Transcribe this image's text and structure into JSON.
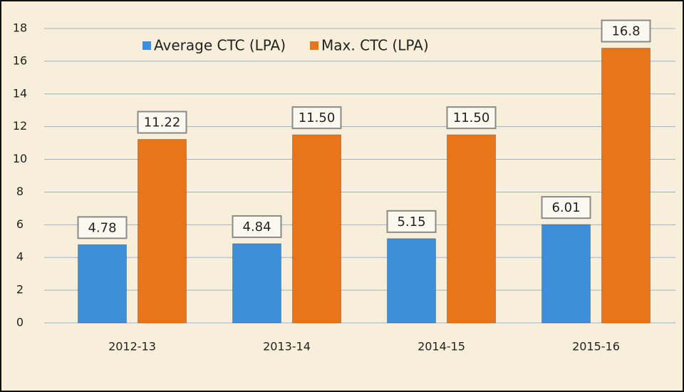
{
  "chart_data": {
    "type": "bar",
    "categories": [
      "2012-13",
      "2013-14",
      "2014-15",
      "2015-16"
    ],
    "series": [
      {
        "name": "Average CTC (LPA)",
        "color": "#3d8fd9",
        "values": [
          4.78,
          4.84,
          5.15,
          6.01
        ]
      },
      {
        "name": "Max. CTC (LPA)",
        "color": "#e8751a",
        "values": [
          11.22,
          11.5,
          11.5,
          16.8
        ],
        "value_labels": [
          "11.22",
          "11.50",
          "11.50",
          "16.8"
        ]
      }
    ],
    "ylim": [
      0,
      18
    ],
    "yticks": [
      0,
      2,
      4,
      6,
      8,
      10,
      12,
      14,
      16,
      18
    ],
    "grid": true,
    "legend": "top"
  }
}
